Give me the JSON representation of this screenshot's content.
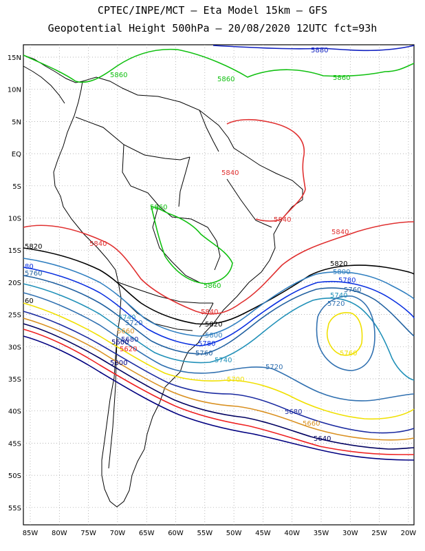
{
  "header": {
    "line1": "CPTEC/INPE/MCT –  Eta Model 15km – GFS",
    "line2": "Geopotential Height 500hPa – 20/08/2020 12UTC fct=93h"
  },
  "axes": {
    "lat_labels": [
      "15N",
      "10N",
      "5N",
      "EQ",
      "5S",
      "10S",
      "15S",
      "20S",
      "25S",
      "30S",
      "35S",
      "40S",
      "45S",
      "50S",
      "55S"
    ],
    "lon_labels": [
      "85W",
      "80W",
      "75W",
      "70W",
      "65W",
      "60W",
      "55W",
      "50W",
      "45W",
      "40W",
      "35W",
      "30W",
      "25W",
      "20W"
    ]
  },
  "colors": {
    "c5560": "#000080",
    "c5580": "#0000cd",
    "c5600": "#000000",
    "c5620": "#ef2020",
    "c5640": "#000060",
    "c5660": "#d99020",
    "c5680": "#1a2aa0",
    "c5700": "#f0e000",
    "c5720": "#3070b0",
    "c5740": "#2090b8",
    "c5760": "#2060a0",
    "c5780": "#0a30e0",
    "c5800": "#307fc0",
    "c5820": "#000000",
    "c5840": "#e03030",
    "c5860": "#10c010",
    "c5880": "#1020c0",
    "coast": "#000000",
    "grid": "#9a9a9a"
  },
  "contour_labels": {
    "l5880_top": "5880",
    "l5860_a": "5860",
    "l5860_b": "5860",
    "l5860_c": "5860",
    "l5860_d": "5860",
    "l5860_e": "5860",
    "l5840_a": "5840",
    "l5840_b": "5840",
    "l5840_c": "5840",
    "l5840_d": "5840",
    "l5840_e": "5840",
    "l5820_a": "5820",
    "l5820_b": "5820",
    "l5820_c": "5820",
    "l5800_a": "5800",
    "l5800_b": "5800",
    "l5800_c": "5800",
    "l5780_a": "5780",
    "l5780_b": "5780",
    "l5760_a": "5760",
    "l5760_b": "5760",
    "l5740_a": "5740",
    "l5740_b": "5740",
    "l5740_c": "5740",
    "l5720_a": "5720",
    "l5720_b": "5720",
    "l5720_c": "5720",
    "l5700_a": "5700",
    "l5700_b": "5760",
    "l5680_a": "5680",
    "l5680_b": "5680",
    "l5660_a": "5660",
    "l5660_b": "5660",
    "l5640": "5640",
    "l5620": "5620",
    "l5600": "5600",
    "l5580": "5580",
    "left_60": "60",
    "left_80": "80",
    "left_5760": "5760"
  }
}
